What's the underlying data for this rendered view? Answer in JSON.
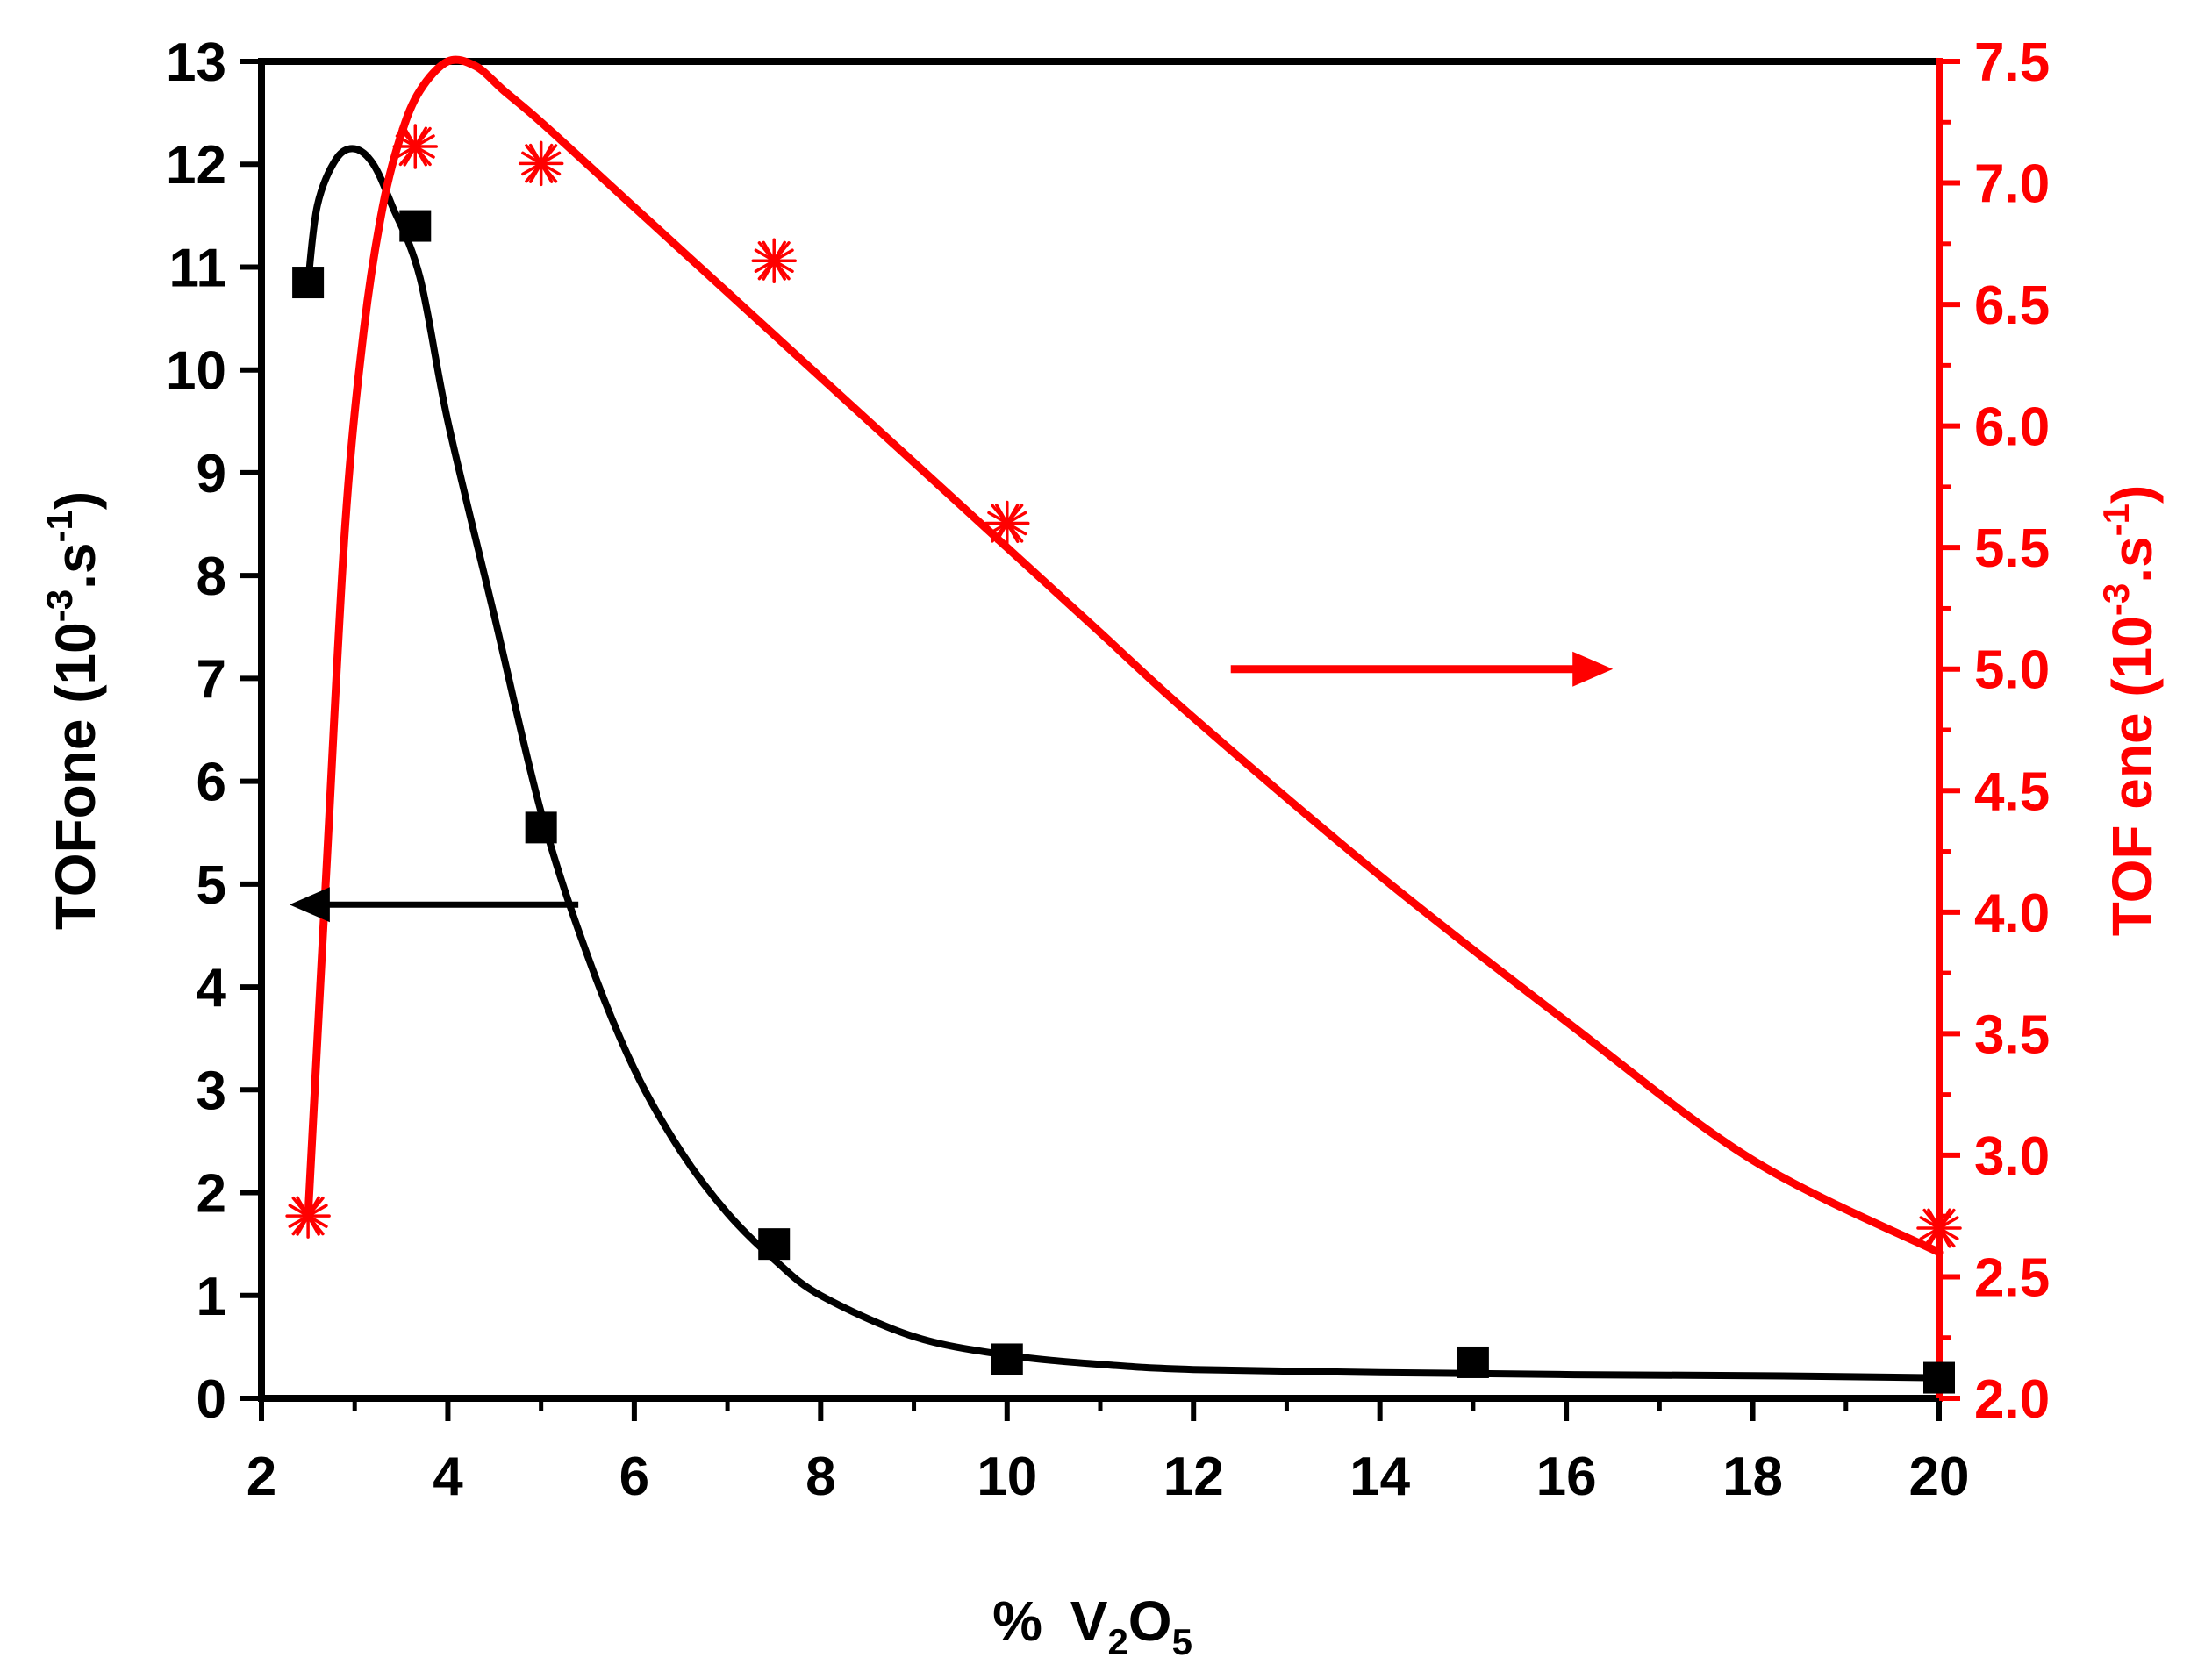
{
  "chart_data": {
    "type": "scatter",
    "title": "",
    "xlabel": {
      "prefix": "% ",
      "parts": [
        {
          "text": "V",
          "sub": "2"
        },
        {
          "text": "O",
          "sub": "5"
        }
      ]
    },
    "xlim": [
      2,
      20
    ],
    "x_ticks": [
      "2",
      "4",
      "6",
      "8",
      "10",
      "12",
      "14",
      "16",
      "18",
      "20"
    ],
    "y_left": {
      "label_main": "TOFone (10",
      "label_sup1": "-3",
      "label_mid": ".s",
      "label_sup2": "-1",
      "label_end": ")",
      "ylim": [
        0,
        13
      ],
      "ticks": [
        "0",
        "1",
        "2",
        "3",
        "4",
        "5",
        "6",
        "7",
        "8",
        "9",
        "10",
        "11",
        "12",
        "13"
      ],
      "color": "#000000"
    },
    "y_right": {
      "label_main": "TOF ene (10",
      "label_sup1": "-3",
      "label_mid": ".s",
      "label_sup2": "-1",
      "label_end": ")",
      "ylim": [
        2.0,
        7.5
      ],
      "ticks": [
        "2.0",
        "2.5",
        "3.0",
        "3.5",
        "4.0",
        "4.5",
        "5.0",
        "5.5",
        "6.0",
        "6.5",
        "7.0",
        "7.5"
      ],
      "color": "#ff0000"
    },
    "series": [
      {
        "name": "TOFone",
        "axis": "left",
        "marker": "square",
        "color": "#000000",
        "x": [
          2.5,
          3.65,
          5.0,
          7.5,
          10.0,
          15.0,
          20.0
        ],
        "values": [
          10.85,
          11.4,
          5.55,
          1.5,
          0.38,
          0.35,
          0.2
        ],
        "fit_x": [
          2.5,
          2.6,
          2.8,
          3.0,
          3.2,
          3.4,
          3.7,
          4.0,
          4.5,
          5.0,
          5.5,
          6.0,
          6.5,
          7.0,
          7.5,
          8.0,
          9.0,
          10.0,
          11.0,
          12.0,
          14.0,
          16.0,
          18.0,
          20.0
        ],
        "fit_y": [
          10.85,
          11.6,
          12.05,
          12.15,
          12.0,
          11.6,
          10.9,
          9.5,
          7.6,
          5.7,
          4.3,
          3.2,
          2.4,
          1.8,
          1.35,
          1.0,
          0.6,
          0.42,
          0.33,
          0.28,
          0.25,
          0.23,
          0.22,
          0.2
        ],
        "arrow_direction": "left"
      },
      {
        "name": "TOF ene",
        "axis": "right",
        "marker": "asterisk",
        "color": "#ff0000",
        "x": [
          2.5,
          3.65,
          5.0,
          7.5,
          10.0,
          20.0
        ],
        "values": [
          2.75,
          7.15,
          7.08,
          6.68,
          5.6,
          2.7
        ],
        "fit_x": [
          2.5,
          2.7,
          2.9,
          3.1,
          3.3,
          3.5,
          3.7,
          4.0,
          4.3,
          4.6,
          5.0,
          6.0,
          7.0,
          8.0,
          9.0,
          10.0,
          11.0,
          12.0,
          14.0,
          16.0,
          18.0,
          20.0
        ],
        "fit_y": [
          2.75,
          4.2,
          5.6,
          6.4,
          6.9,
          7.2,
          7.38,
          7.5,
          7.48,
          7.38,
          7.25,
          6.9,
          6.55,
          6.2,
          5.85,
          5.5,
          5.15,
          4.8,
          4.15,
          3.55,
          2.98,
          2.6
        ],
        "arrow_direction": "right"
      }
    ],
    "annotations": [
      {
        "type": "arrow",
        "series": "TOFone",
        "direction": "left",
        "x_from": 5.4,
        "x_to": 2.3,
        "y": 4.8,
        "axis": "left"
      },
      {
        "type": "arrow",
        "series": "TOF ene",
        "direction": "right",
        "x_from": 12.4,
        "x_to": 16.5,
        "y": 5.0,
        "axis": "right"
      }
    ],
    "grid": false,
    "legend": "none"
  }
}
